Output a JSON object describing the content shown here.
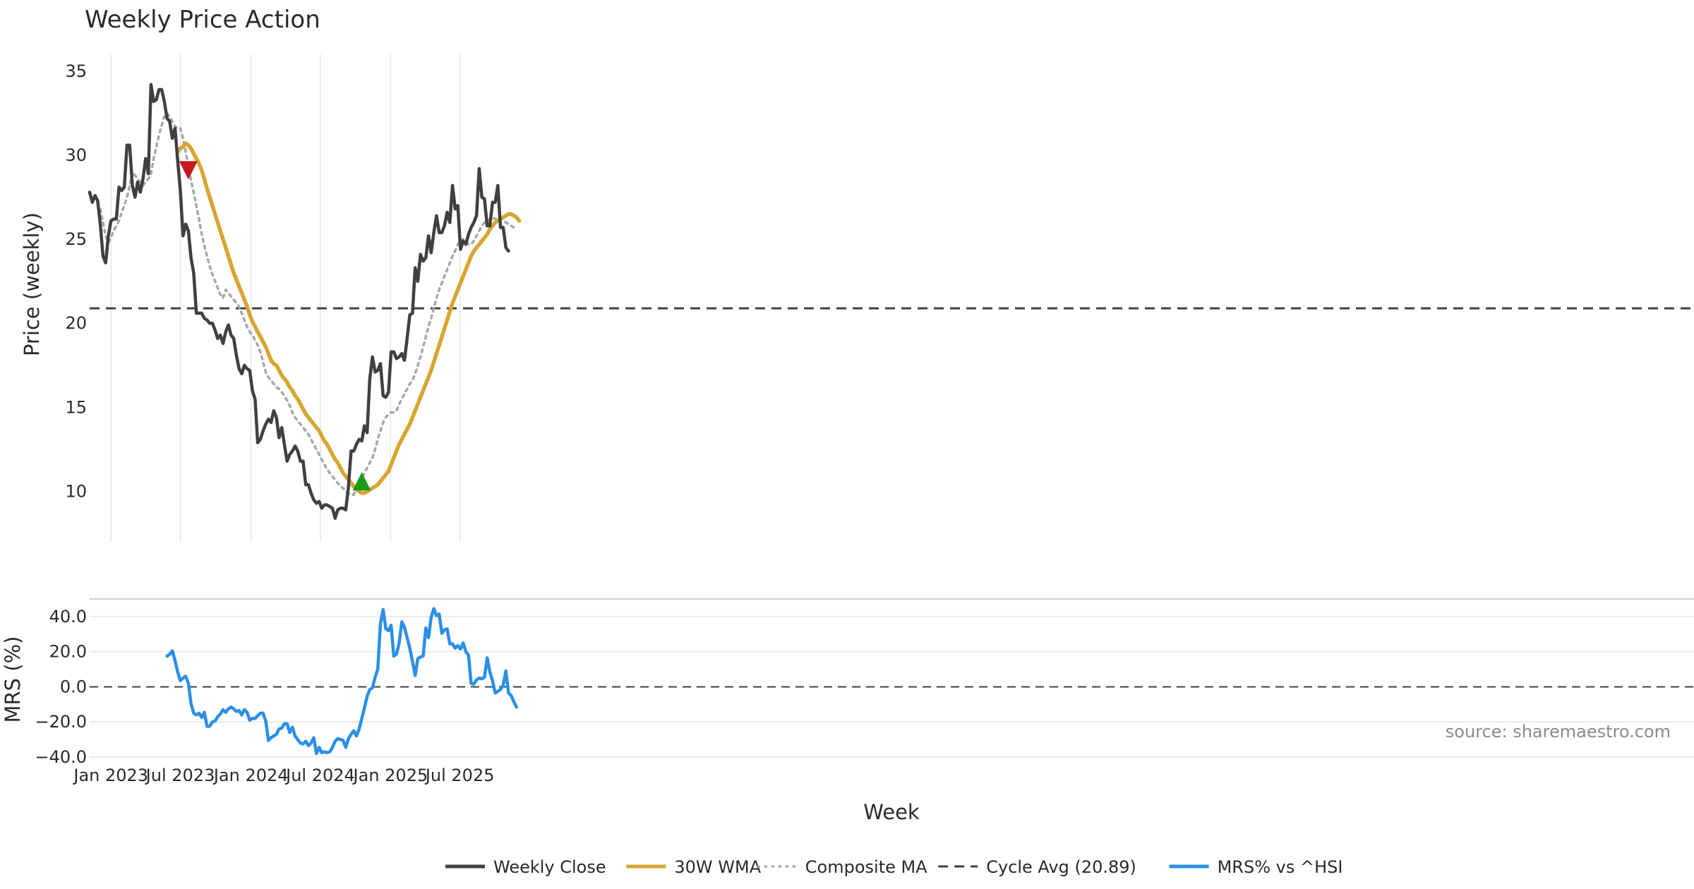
{
  "chart_data": [
    {
      "panel": "price",
      "type": "line",
      "title": "Weekly Price Action",
      "ylabel": "Price (weekly)",
      "ylim": [
        7,
        36
      ],
      "yticks": [
        10,
        15,
        20,
        25,
        30,
        35
      ],
      "x_start": "2022-11-06",
      "grid": "vertical",
      "cycle_avg": 20.89,
      "series": [
        {
          "name": "Weekly Close",
          "color": "#404040",
          "values": [
            27.8,
            27.2,
            27.6,
            27.3,
            25.9,
            24.0,
            23.6,
            25.2,
            26.1,
            26.2,
            26.2,
            28.1,
            27.9,
            28.1,
            30.6,
            30.6,
            28.2,
            27.5,
            28.4,
            27.8,
            28.6,
            29.8,
            28.9,
            34.2,
            33.2,
            33.3,
            33.9,
            33.9,
            33.2,
            32.2,
            32.0,
            31.0,
            31.6,
            29.7,
            27.9,
            25.2,
            25.9,
            25.5,
            23.9,
            23.0,
            20.6,
            20.6,
            20.6,
            20.3,
            20.2,
            20.0,
            20.0,
            19.6,
            19.1,
            19.3,
            18.8,
            19.5,
            19.9,
            19.3,
            19.1,
            18.1,
            17.3,
            17.0,
            17.5,
            17.3,
            17.2,
            16.0,
            15.5,
            12.9,
            13.1,
            13.6,
            14.0,
            14.3,
            14.1,
            14.8,
            14.4,
            13.2,
            13.8,
            12.8,
            11.8,
            12.2,
            12.4,
            12.7,
            12.4,
            11.8,
            11.8,
            10.4,
            10.4,
            9.9,
            9.5,
            9.3,
            9.4,
            9.0,
            9.2,
            9.2,
            9.1,
            9.0,
            8.4,
            8.9,
            9.0,
            9.0,
            8.9,
            10.3,
            12.4,
            12.4,
            12.8,
            13.1,
            13.0,
            13.9,
            13.5,
            16.7,
            18.0,
            17.1,
            17.2,
            17.6,
            15.7,
            15.6,
            15.9,
            18.3,
            18.3,
            17.9,
            18.0,
            18.2,
            17.8,
            19.1,
            20.5,
            20.6,
            23.3,
            22.5,
            24.1,
            23.7,
            23.9,
            25.2,
            24.2,
            25.4,
            26.4,
            25.4,
            25.4,
            25.8,
            26.6,
            26.0,
            28.2,
            26.8,
            27.0,
            24.4,
            24.9,
            24.7,
            25.3,
            25.7,
            26.0,
            26.4,
            29.2,
            27.5,
            27.4,
            25.8,
            25.8,
            27.2,
            27.2,
            28.2,
            25.7,
            25.7,
            24.5,
            24.3
          ]
        },
        {
          "name": "30W WMA",
          "color": "#d8a530",
          "start_index": 33,
          "values": [
            30.2,
            30.4,
            30.5,
            30.7,
            30.6,
            30.4,
            30.1,
            29.8,
            29.5,
            29.1,
            28.6,
            28.0,
            27.5,
            27.0,
            26.5,
            26.0,
            25.5,
            25.0,
            24.5,
            24.0,
            23.5,
            23.0,
            22.6,
            22.2,
            21.8,
            21.4,
            21.0,
            20.5,
            20.1,
            19.8,
            19.5,
            19.2,
            18.9,
            18.6,
            18.2,
            17.8,
            17.6,
            17.5,
            17.2,
            16.9,
            16.7,
            16.5,
            16.2,
            16.0,
            15.7,
            15.5,
            15.2,
            14.9,
            14.6,
            14.4,
            14.2,
            14.0,
            13.8,
            13.6,
            13.3,
            13.0,
            12.8,
            12.5,
            12.2,
            11.9,
            11.7,
            11.4,
            11.1,
            10.9,
            10.7,
            10.5,
            10.3,
            10.1,
            10.0,
            9.9,
            9.9,
            10.0,
            10.1,
            10.2,
            10.3,
            10.4,
            10.6,
            10.8,
            11.0,
            11.2,
            11.6,
            12.0,
            12.4,
            12.8,
            13.1,
            13.4,
            13.7,
            14.0,
            14.4,
            14.8,
            15.2,
            15.6,
            16.0,
            16.4,
            16.8,
            17.2,
            17.7,
            18.2,
            18.7,
            19.2,
            19.7,
            20.2,
            20.7,
            21.2,
            21.6,
            22.0,
            22.4,
            22.8,
            23.2,
            23.6,
            24.0,
            24.3,
            24.5,
            24.7,
            24.9,
            25.1,
            25.3,
            25.6,
            25.8,
            26.0,
            26.1,
            26.2,
            26.3,
            26.4,
            26.5,
            26.5,
            26.4,
            26.3,
            26.1
          ]
        },
        {
          "name": "Composite MA",
          "color": "#a8a8a8",
          "start_index": 4,
          "values": [
            26.8,
            26.0,
            25.2,
            24.8,
            25.1,
            25.5,
            25.8,
            26.1,
            26.6,
            27.0,
            27.5,
            28.2,
            29.0,
            28.8,
            28.6,
            28.4,
            28.2,
            28.4,
            28.6,
            28.9,
            29.8,
            30.5,
            31.2,
            31.8,
            32.3,
            32.5,
            32.3,
            32.0,
            31.7,
            31.6,
            31.6,
            31.0,
            30.2,
            29.4,
            28.5,
            27.8,
            27.0,
            26.2,
            25.3,
            24.6,
            24.0,
            23.4,
            22.9,
            22.5,
            22.1,
            21.7,
            21.5,
            22.0,
            21.8,
            21.6,
            21.4,
            21.2,
            21.0,
            20.6,
            20.2,
            19.8,
            19.5,
            19.3,
            19.0,
            18.7,
            18.3,
            17.7,
            17.1,
            16.8,
            16.6,
            16.4,
            16.2,
            16.1,
            15.9,
            15.7,
            15.4,
            15.1,
            14.7,
            14.4,
            14.2,
            14.0,
            13.8,
            13.6,
            13.4,
            13.1,
            12.8,
            12.5,
            12.2,
            11.9,
            11.6,
            11.3,
            11.1,
            10.9,
            10.7,
            10.5,
            10.3,
            10.2,
            10.0,
            9.9,
            9.8,
            9.8,
            10.2,
            10.5,
            10.8,
            11.1,
            11.4,
            11.7,
            12.0,
            12.5,
            13.1,
            13.6,
            14.1,
            14.4,
            14.6,
            14.7,
            14.7,
            14.8,
            15.2,
            15.5,
            15.8,
            16.1,
            16.4,
            16.6,
            17.0,
            17.5,
            18.0,
            18.6,
            19.2,
            19.8,
            20.3,
            20.9,
            21.5,
            22.0,
            22.4,
            22.8,
            23.2,
            23.6,
            24.0,
            24.3,
            24.7,
            25.0,
            25.0,
            24.8,
            24.7,
            24.7,
            24.9,
            25.2,
            25.5,
            25.8,
            26.0,
            26.1,
            26.2,
            26.3,
            26.2,
            26.2,
            26.3,
            26.2,
            26.0,
            25.9,
            25.8,
            25.7
          ]
        }
      ],
      "markers": [
        {
          "name": "sell-marker",
          "shape": "triangle-down",
          "color": "#c8191e",
          "index": 37,
          "value": 29.1
        },
        {
          "name": "buy-marker",
          "shape": "triangle-up",
          "color": "#1a9a1a",
          "index": 102,
          "value": 10.6
        }
      ],
      "reference_lines": [
        {
          "name": "Cycle Avg (20.89)",
          "value": 20.89,
          "style": "dashed",
          "color": "#404040"
        }
      ]
    },
    {
      "panel": "mrs",
      "type": "line",
      "ylabel": "MRS (%)",
      "xlabel": "Week",
      "ylim": [
        -40,
        50
      ],
      "yticks": [
        {
          "value": 40,
          "label": "40.0"
        },
        {
          "value": 20,
          "label": "20.0"
        },
        {
          "value": 0,
          "label": "0.0"
        },
        {
          "value": -20,
          "label": "−20.0"
        },
        {
          "value": -40,
          "label": "−40.0"
        }
      ],
      "x_start": "2022-11-06",
      "xticks": [
        {
          "label": "Jan 2023",
          "index": 8
        },
        {
          "label": "Jul 2023",
          "index": 34
        },
        {
          "label": "Jan 2024",
          "index": 60.5
        },
        {
          "label": "Jul 2024",
          "index": 86.5
        },
        {
          "label": "Jan 2025",
          "index": 112.8
        },
        {
          "label": "Jul 2025",
          "index": 138.8
        }
      ],
      "series": [
        {
          "name": "MRS% vs ^HSI",
          "color": "#2b8fe6",
          "start_index": 29,
          "values": [
            17.5,
            18.5,
            20.5,
            15.0,
            8.5,
            3.5,
            5.0,
            6.0,
            2.0,
            -9.5,
            -15.0,
            -16.0,
            -15.0,
            -17.5,
            -14.5,
            -22.5,
            -22.5,
            -20.0,
            -19.5,
            -17.0,
            -15.5,
            -13.0,
            -14.5,
            -12.5,
            -11.5,
            -12.5,
            -14.0,
            -13.5,
            -16.0,
            -13.0,
            -14.5,
            -19.0,
            -18.0,
            -18.0,
            -16.5,
            -15.0,
            -15.0,
            -19.5,
            -30.5,
            -29.0,
            -28.0,
            -27.0,
            -24.0,
            -23.5,
            -21.0,
            -21.0,
            -26.0,
            -23.0,
            -28.0,
            -30.0,
            -32.0,
            -32.5,
            -31.0,
            -33.5,
            -32.0,
            -29.0,
            -38.0,
            -34.5,
            -37.5,
            -37.0,
            -37.5,
            -37.0,
            -34.5,
            -31.0,
            -29.5,
            -30.0,
            -30.5,
            -34.5,
            -29.5,
            -27.0,
            -25.0,
            -28.0,
            -24.0,
            -18.0,
            -12.0,
            -5.5,
            -1.5,
            -0.5,
            5.5,
            10.0,
            36.0,
            44.0,
            33.0,
            32.0,
            35.0,
            17.5,
            18.5,
            25.0,
            37.0,
            34.0,
            28.0,
            22.0,
            14.5,
            6.5,
            16.0,
            17.0,
            17.5,
            33.5,
            28.0,
            39.5,
            44.5,
            40.5,
            41.5,
            30.5,
            32.5,
            33.0,
            24.5,
            24.5,
            22.0,
            23.5,
            21.5,
            25.0,
            20.0,
            18.0,
            2.0,
            1.5,
            4.0,
            5.0,
            4.5,
            5.5,
            16.5,
            8.5,
            3.5,
            -3.5,
            -2.5,
            -1.5,
            1.0,
            9.0,
            -3.5,
            -5.0,
            -8.5,
            -11.5
          ]
        }
      ],
      "reference_lines": [
        {
          "name": "zero-line",
          "value": 0,
          "style": "dashed",
          "color": "#404040"
        }
      ]
    }
  ],
  "legend": {
    "position": "bottom-center",
    "items": [
      {
        "label": "Weekly Close",
        "color": "#404040",
        "style": "solid"
      },
      {
        "label": "30W WMA",
        "color": "#d8a530",
        "style": "solid"
      },
      {
        "label": "Composite MA",
        "color": "#a8a8a8",
        "style": "dotted"
      },
      {
        "label": "Cycle Avg (20.89)",
        "color": "#404040",
        "style": "dashed"
      },
      {
        "label": "MRS% vs ^HSI",
        "color": "#2b8fe6",
        "style": "solid"
      }
    ]
  },
  "source": "source: sharemaestro.com"
}
